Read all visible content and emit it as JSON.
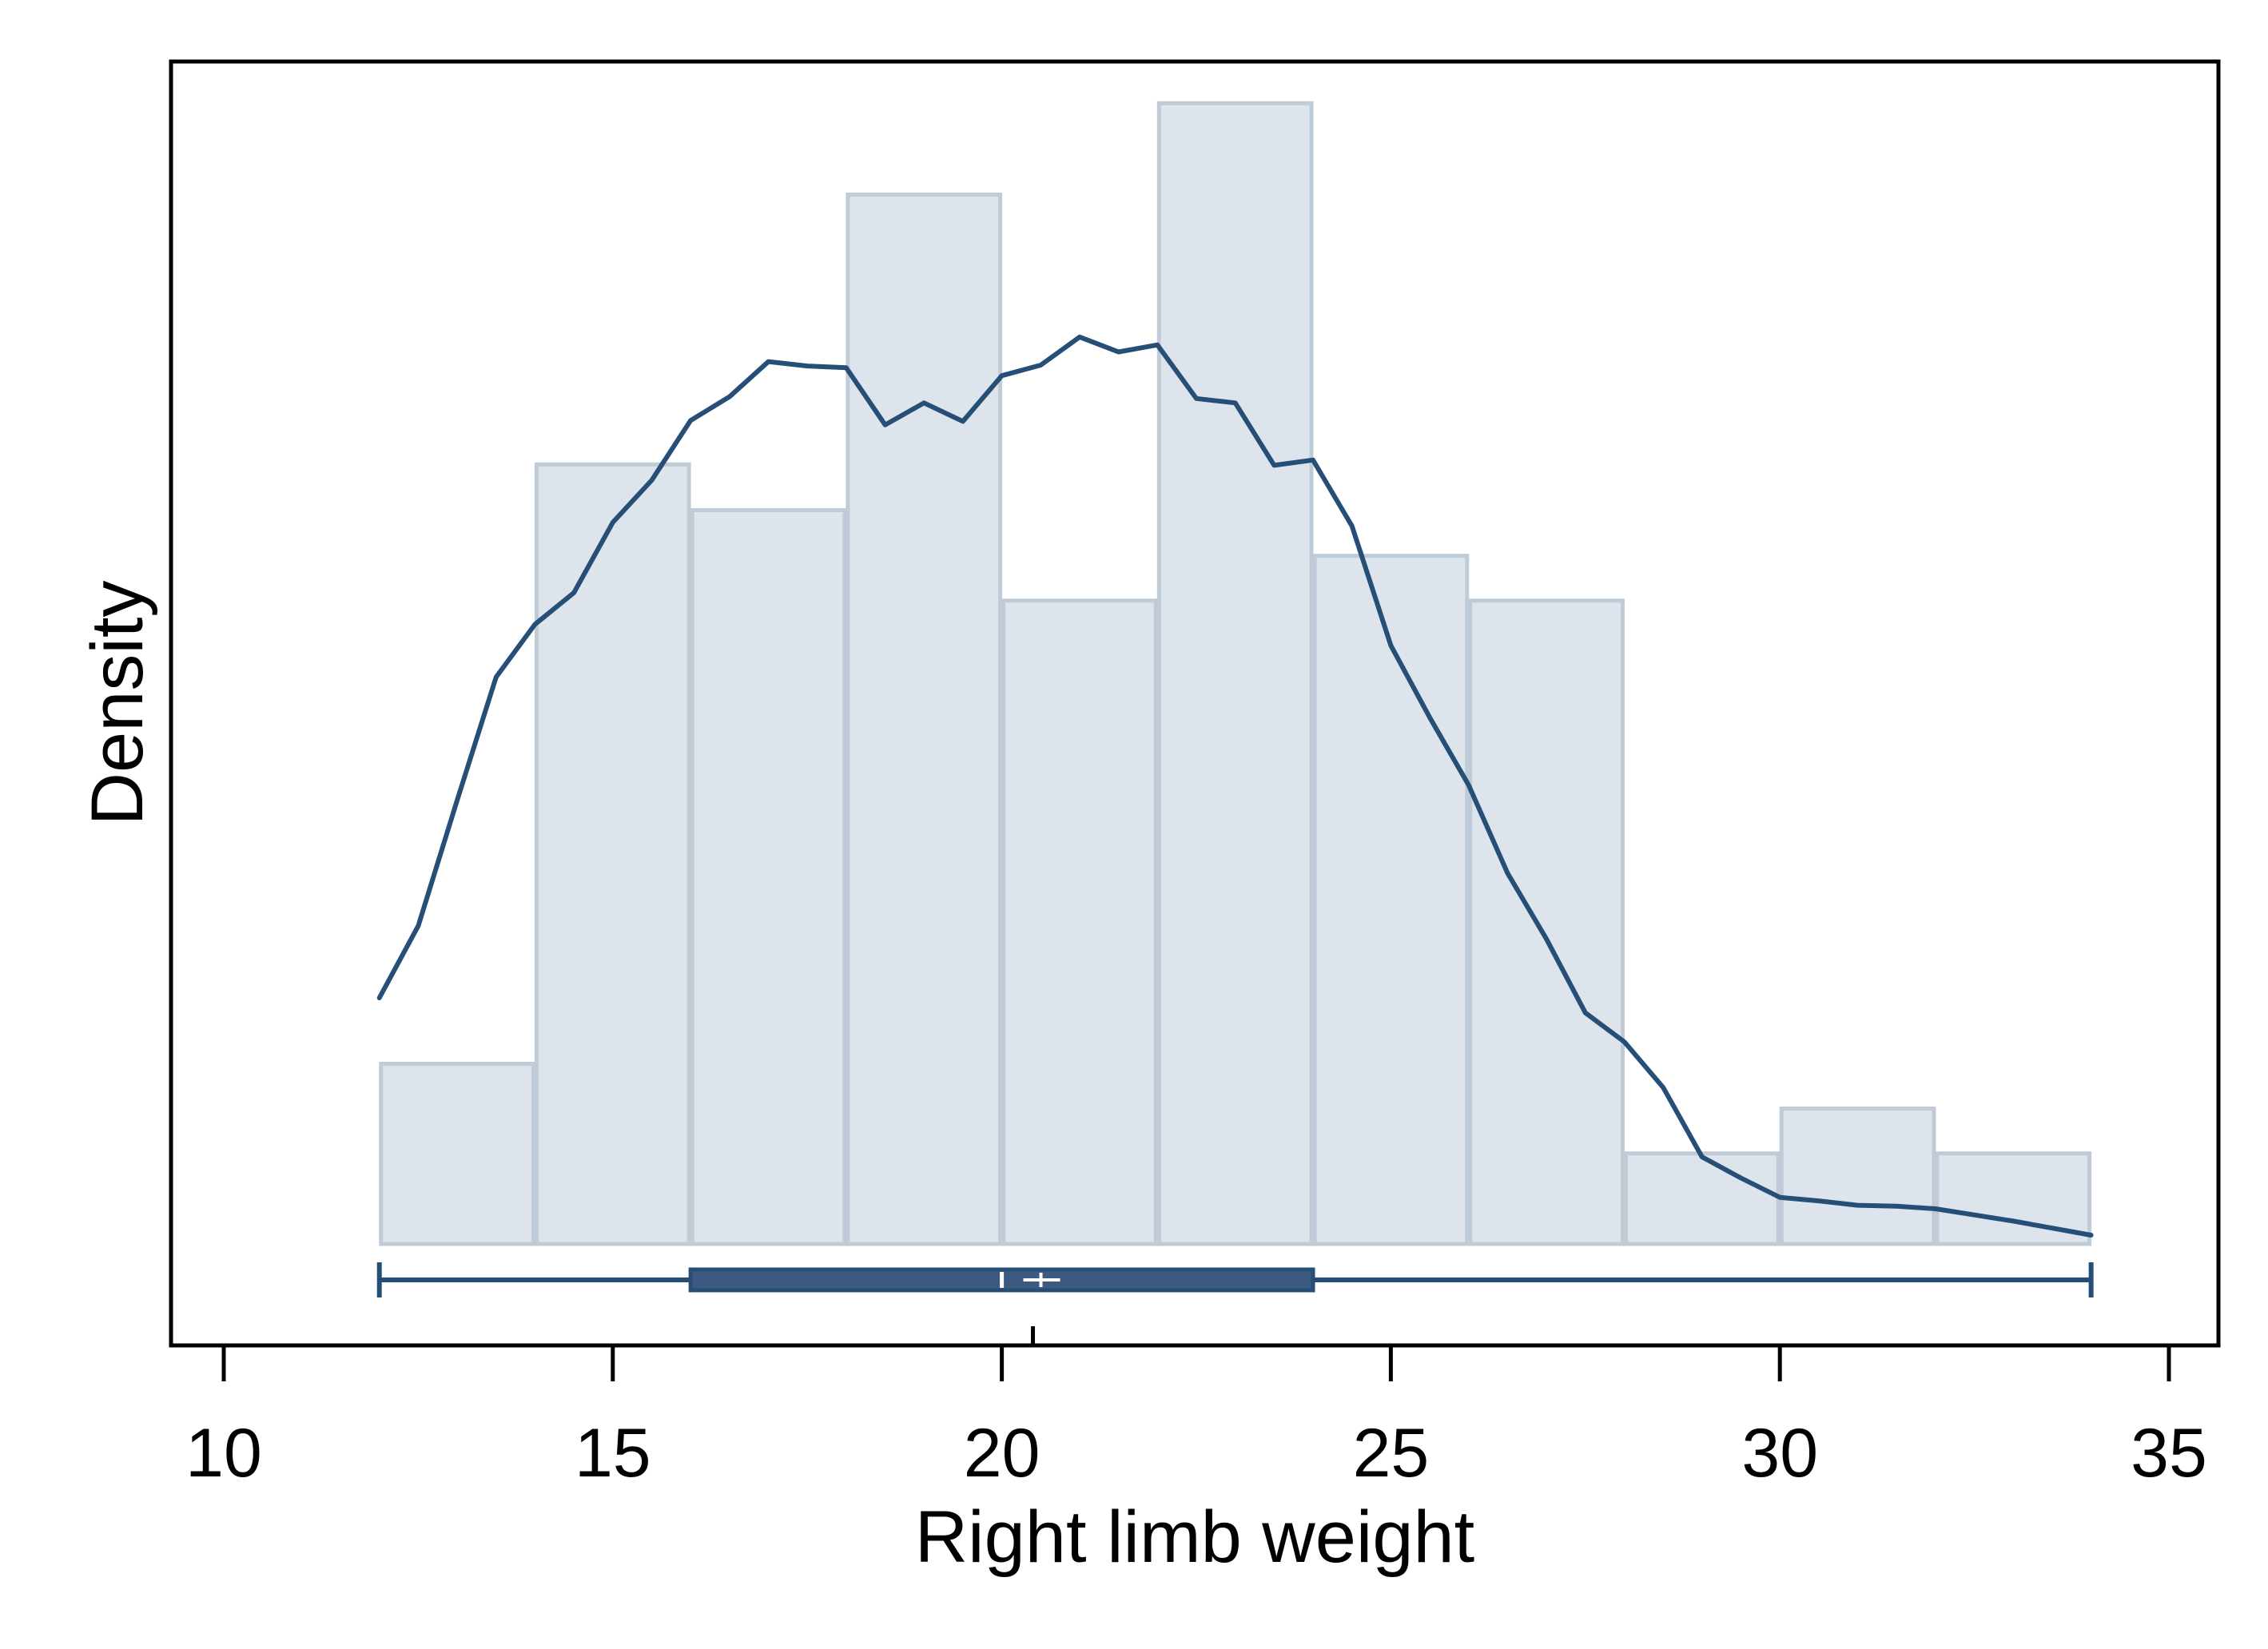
{
  "chart_data": {
    "type": "histogram",
    "xlabel": "Right limb weight",
    "ylabel": "Density",
    "xlim": [
      9.3,
      35.7
    ],
    "x_ticks": [
      10,
      15,
      20,
      25,
      30,
      35
    ],
    "y_axis_ticks_shown": false,
    "grid": false,
    "legend": "none",
    "colors": {
      "bar_fill": "#dde4eb",
      "bar_stroke": "#bfcbd6",
      "curve": "#264f78",
      "box_fill": "#3d5a80",
      "whisker": "#264f78",
      "frame": "#000000"
    },
    "bins": [
      {
        "start": 12,
        "end": 14,
        "density": 0.0205
      },
      {
        "start": 14,
        "end": 16,
        "density": 0.0887
      },
      {
        "start": 16,
        "end": 18,
        "density": 0.0835
      },
      {
        "start": 18,
        "end": 20,
        "density": 0.1194
      },
      {
        "start": 20,
        "end": 22,
        "density": 0.0732
      },
      {
        "start": 22,
        "end": 24,
        "density": 0.1298
      },
      {
        "start": 24,
        "end": 26,
        "density": 0.0783
      },
      {
        "start": 26,
        "end": 28,
        "density": 0.0732
      },
      {
        "start": 28,
        "end": 30,
        "density": 0.0103
      },
      {
        "start": 30,
        "end": 32,
        "density": 0.0154
      },
      {
        "start": 32,
        "end": 34,
        "density": 0.0103
      }
    ],
    "kde": {
      "x": [
        12.0,
        12.5,
        13.0,
        13.5,
        14.0,
        14.5,
        15.0,
        15.5,
        16.0,
        16.5,
        17.0,
        17.5,
        18.0,
        18.5,
        19.0,
        19.5,
        20.0,
        20.5,
        21.0,
        21.5,
        22.0,
        22.5,
        23.0,
        23.5,
        24.0,
        24.5,
        25.0,
        25.5,
        26.0,
        26.5,
        27.0,
        27.5,
        28.0,
        28.5,
        29.0,
        29.5,
        30.0,
        30.5,
        31.0,
        31.5,
        32.0,
        32.5,
        33.0,
        33.5,
        34.0
      ],
      "y": [
        0.028,
        0.0362,
        0.0505,
        0.0645,
        0.0705,
        0.0741,
        0.0821,
        0.0869,
        0.0937,
        0.0964,
        0.1004,
        0.0999,
        0.0997,
        0.0932,
        0.0957,
        0.0936,
        0.0988,
        0.1,
        0.1032,
        0.1015,
        0.1023,
        0.0962,
        0.0957,
        0.0886,
        0.0892,
        0.0817,
        0.0681,
        0.0599,
        0.0522,
        0.0422,
        0.0347,
        0.0263,
        0.023,
        0.0178,
        0.0099,
        0.0075,
        0.0053,
        0.0049,
        0.0044,
        0.0043,
        0.004,
        0.0033,
        0.0026,
        0.0018,
        0.001
      ]
    },
    "boxplot": {
      "min": 12.0,
      "q1": 16.0,
      "median": 20.0,
      "mean": 20.4,
      "q3": 24.0,
      "max": 34.0
    }
  }
}
